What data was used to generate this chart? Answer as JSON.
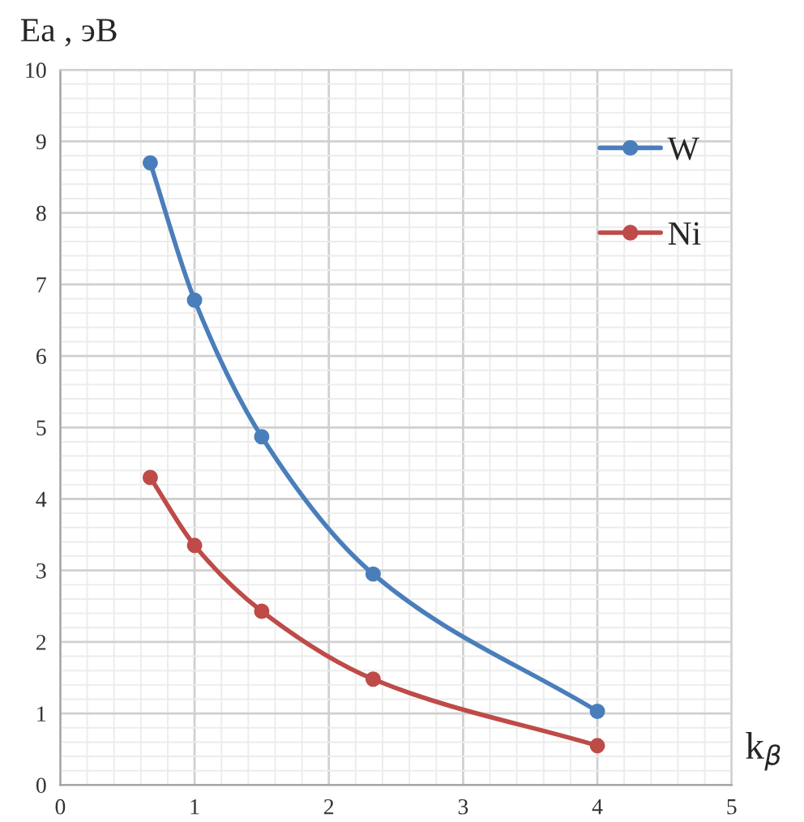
{
  "chart_data": {
    "type": "line",
    "xlabel": "k$_{β}$",
    "ylabel": "Ea , эВ",
    "x": [
      0.67,
      1,
      1.5,
      2.33,
      4
    ],
    "series": [
      {
        "name": "W",
        "color": "#4a7ebb",
        "values": [
          8.7,
          6.78,
          4.87,
          2.95,
          1.03
        ]
      },
      {
        "name": "Ni",
        "color": "#be4b48",
        "values": [
          4.3,
          3.35,
          2.43,
          1.48,
          0.55
        ]
      }
    ],
    "xlim": [
      0,
      5
    ],
    "ylim": [
      0,
      10
    ],
    "xticks": [
      0,
      1,
      2,
      3,
      4,
      5
    ],
    "yticks": [
      0,
      1,
      2,
      3,
      4,
      5,
      6,
      7,
      8,
      9,
      10
    ],
    "grid": true,
    "legend": "top right",
    "marker": "circle",
    "line_style": "solid"
  }
}
